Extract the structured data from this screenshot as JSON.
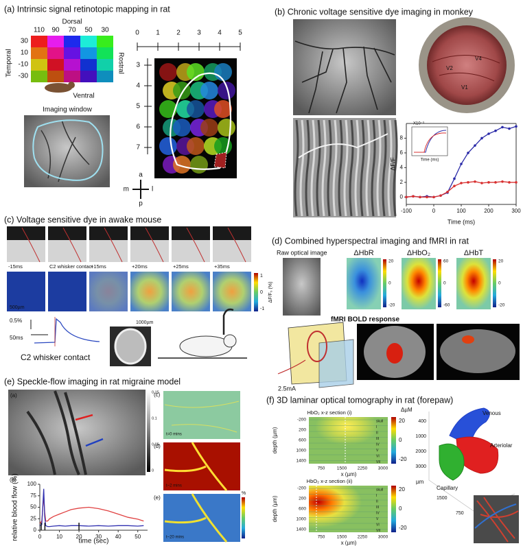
{
  "a": {
    "title": "(a) Intrinsic signal retinotopic mapping in rat",
    "dorsal": "Dorsal",
    "ventral": "Ventral",
    "temporal": "Temporal",
    "rostral": "Rostral",
    "azimuth": [
      "110",
      "90",
      "70",
      "50",
      "30"
    ],
    "elevation": [
      "30",
      "10",
      "-10",
      "-30"
    ],
    "imaging_window": "Imaging window",
    "ruler_x": [
      "0",
      "1",
      "2",
      "3",
      "4",
      "5"
    ],
    "ruler_y": [
      "3",
      "4",
      "5",
      "6",
      "7"
    ],
    "compass": {
      "a": "a",
      "p": "p",
      "m": "m",
      "l": "l"
    }
  },
  "b": {
    "title": "(b) Chronic voltage sensitive dye imaging in monkey",
    "areas": [
      "V4",
      "V2",
      "V1"
    ],
    "inset_scale": "X10⁻³",
    "inset_xlabel": "Time (ms)",
    "chart": {
      "type": "line",
      "xlabel": "Time (ms)",
      "ylabel": "ΔF/F",
      "xlim": [
        -100,
        300
      ],
      "xticks": [
        -100,
        0,
        100,
        200,
        300
      ],
      "ylim": [
        -1,
        10
      ],
      "yticks": [
        0,
        2,
        4,
        6,
        8
      ],
      "x": [
        -100,
        -75,
        -50,
        -25,
        0,
        25,
        50,
        75,
        100,
        125,
        150,
        175,
        200,
        225,
        250,
        275,
        300
      ],
      "markers": true,
      "series": [
        {
          "color": "#2a2aa8",
          "values": [
            0,
            0.1,
            0,
            0.1,
            0,
            0.2,
            0.6,
            2.5,
            4.5,
            6,
            7,
            8,
            8.6,
            9,
            9.5,
            9.3,
            9.6
          ]
        },
        {
          "color": "#d83030",
          "values": [
            0,
            0.1,
            0,
            0,
            0,
            0.2,
            0.7,
            1.5,
            1.9,
            2,
            2.1,
            1.9,
            2,
            2,
            2.1,
            2,
            2
          ]
        }
      ]
    }
  },
  "c": {
    "title": "(c) Voltage sensitive dye in awake mouse",
    "frames": [
      "-15ms",
      "C2 whisker contact",
      "+15ms",
      "+20ms",
      "+25ms",
      "+35ms"
    ],
    "scale_bar": "500µm",
    "colorbar_label": "ΔF/F₀ (%)",
    "colorbar_ticks": [
      "1",
      "0",
      "-1"
    ],
    "trace_scale_y": "0.5%",
    "trace_scale_x": "50ms",
    "trace_label": "C2 whisker contact",
    "window_scale": "1000µm"
  },
  "d": {
    "title": "(d) Combined hyperspectral imaging and fMRI in rat",
    "raw": "Raw optical image",
    "maps": [
      {
        "label": "ΔHbR",
        "ticks": [
          "20",
          "0",
          "-20"
        ]
      },
      {
        "label": "ΔHbO₂",
        "ticks": [
          "60",
          "0",
          "-60"
        ]
      },
      {
        "label": "ΔHbT",
        "ticks": [
          "20",
          "0",
          "-20"
        ]
      }
    ],
    "fmri": "fMRI BOLD response",
    "current": "2.5mA"
  },
  "e": {
    "title": "(e) Speckle-flow imaging in rat migraine model",
    "sublabels": [
      "(a)",
      "(b)",
      "(c)",
      "(d)",
      "(e)"
    ],
    "times": [
      "t=0 mins",
      "t~2 mins",
      "t~20 mins"
    ],
    "speckle_ticks": [
      "0.15",
      "0.1",
      "0.05",
      "0"
    ],
    "percent": "%",
    "chart": {
      "type": "line",
      "xlabel": "time (sec)",
      "ylabel": "relative blood flow (%)",
      "xlim": [
        0,
        55
      ],
      "xticks": [
        0,
        10,
        20,
        30,
        40,
        50
      ],
      "ylim": [
        0,
        100
      ],
      "yticks": [
        0,
        25,
        50,
        75,
        100
      ],
      "x": [
        0,
        1,
        2,
        2.5,
        3,
        4,
        5,
        7,
        10,
        13,
        16,
        20,
        25,
        30,
        35,
        40,
        45,
        50,
        53
      ],
      "markers": false,
      "series": [
        {
          "color": "#e04040",
          "values": [
            15,
            20,
            75,
            40,
            20,
            20,
            25,
            30,
            35,
            40,
            45,
            48,
            50,
            47,
            42,
            35,
            28,
            24,
            20
          ]
        },
        {
          "color": "#3030b0",
          "values": [
            10,
            12,
            90,
            30,
            10,
            8,
            8,
            9,
            10,
            9,
            10,
            10,
            9,
            10,
            9,
            10,
            10,
            9,
            10
          ]
        }
      ]
    }
  },
  "f": {
    "title": "(f) 3D laminar optical tomography in rat (forepaw)",
    "sections": [
      "HbO₂ x-z section (i)",
      "HbO₂ x-z section (ii)"
    ],
    "unit": "ΔµM",
    "colorbar_ticks": [
      "20",
      "0",
      "-20"
    ],
    "ylabel": "depth (µm)",
    "xlabel": "x (µm)",
    "yticks": [
      "-200",
      "200",
      "600",
      "1000",
      "1400"
    ],
    "xticks": [
      "750",
      "1500",
      "2250",
      "3000"
    ],
    "layers": [
      "skull",
      "I",
      "II",
      "III",
      "IV",
      "V",
      "VI",
      "VII"
    ],
    "vessels": [
      "Venous",
      "Arteriolar",
      "Capillary"
    ],
    "axis_unit": "µm",
    "z_ticks": [
      "400",
      "1000",
      "2000",
      "3000"
    ],
    "x3d_ticks": [
      "1500",
      "750"
    ]
  }
}
